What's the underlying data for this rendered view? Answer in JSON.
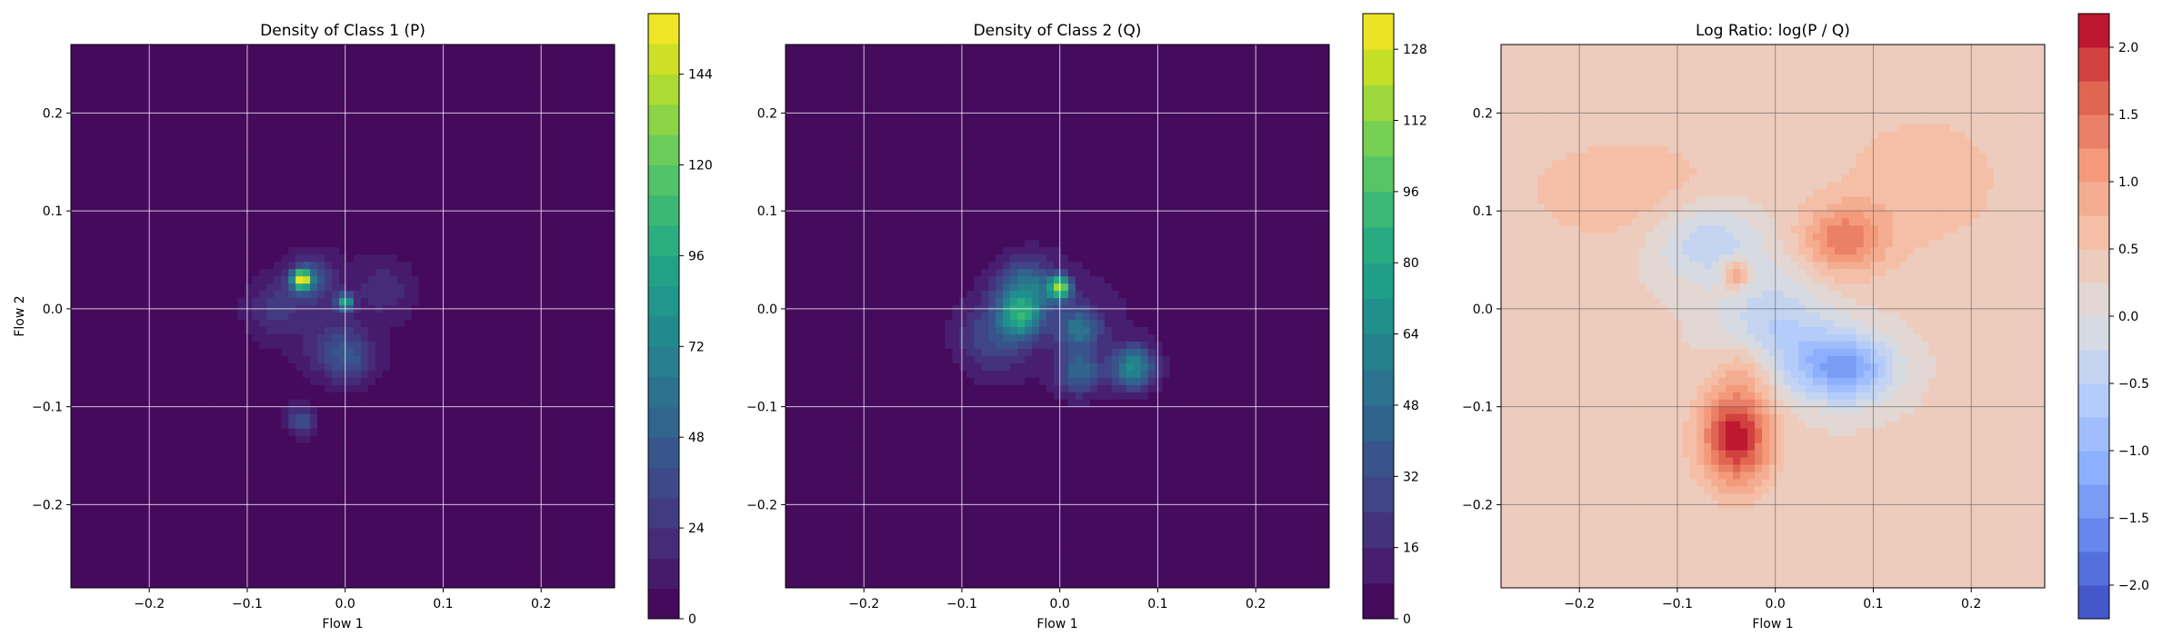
{
  "chart_data": [
    {
      "type": "heatmap",
      "subtype": "filled-contour",
      "title": "Density of Class 1 (P)",
      "xlabel": "Flow 1",
      "ylabel": "Flow 2",
      "xlim": [
        -0.28,
        0.275
      ],
      "ylim": [
        -0.285,
        0.27
      ],
      "xticks": [
        -0.2,
        -0.1,
        0.0,
        0.1,
        0.2
      ],
      "xtick_labels": [
        "−0.2",
        "−0.1",
        "0.0",
        "0.1",
        "0.2"
      ],
      "yticks": [
        -0.2,
        -0.1,
        0.0,
        0.1,
        0.2
      ],
      "ytick_labels": [
        "−0.2",
        "−0.1",
        "0.0",
        "0.1",
        "0.2"
      ],
      "grid": true,
      "colormap": "viridis",
      "colorbar": {
        "range": [
          0,
          160
        ],
        "levels": 20,
        "ticks": [
          0,
          24,
          48,
          72,
          96,
          120,
          144
        ],
        "tick_labels": [
          "0",
          "24",
          "48",
          "72",
          "96",
          "120",
          "144"
        ]
      },
      "background": "#440154",
      "blobs": [
        {
          "x": -0.01,
          "y": 0.0,
          "sx": 0.085,
          "sy": 0.085,
          "value": 8
        },
        {
          "x": -0.045,
          "y": 0.03,
          "sx": 0.006,
          "sy": 0.006,
          "value": 150
        },
        {
          "x": -0.035,
          "y": 0.03,
          "sx": 0.015,
          "sy": 0.015,
          "value": 45
        },
        {
          "x": 0.0,
          "y": 0.007,
          "sx": 0.006,
          "sy": 0.006,
          "value": 85
        },
        {
          "x": -0.01,
          "y": -0.04,
          "sx": 0.02,
          "sy": 0.02,
          "value": 28
        },
        {
          "x": 0.01,
          "y": -0.055,
          "sx": 0.015,
          "sy": 0.015,
          "value": 22
        },
        {
          "x": -0.045,
          "y": -0.115,
          "sx": 0.01,
          "sy": 0.01,
          "value": 38
        },
        {
          "x": -0.07,
          "y": 0.0,
          "sx": 0.02,
          "sy": 0.02,
          "value": 22
        },
        {
          "x": 0.04,
          "y": 0.02,
          "sx": 0.02,
          "sy": 0.02,
          "value": 15
        }
      ]
    },
    {
      "type": "heatmap",
      "subtype": "filled-contour",
      "title": "Density of Class 2 (Q)",
      "xlabel": "Flow 1",
      "ylabel": "",
      "xlim": [
        -0.28,
        0.275
      ],
      "ylim": [
        -0.285,
        0.27
      ],
      "xticks": [
        -0.2,
        -0.1,
        0.0,
        0.1,
        0.2
      ],
      "xtick_labels": [
        "−0.2",
        "−0.1",
        "0.0",
        "0.1",
        "0.2"
      ],
      "yticks": [
        -0.2,
        -0.1,
        0.0,
        0.1,
        0.2
      ],
      "ytick_labels": [
        "−0.2",
        "−0.1",
        "0.0",
        "0.1",
        "0.2"
      ],
      "grid": true,
      "colormap": "viridis",
      "colorbar": {
        "range": [
          0,
          136
        ],
        "levels": 17,
        "ticks": [
          0,
          16,
          32,
          48,
          64,
          80,
          96,
          112,
          128
        ],
        "tick_labels": [
          "0",
          "16",
          "32",
          "48",
          "64",
          "80",
          "96",
          "112",
          "128"
        ]
      },
      "background": "#440154",
      "blobs": [
        {
          "x": 0.01,
          "y": -0.01,
          "sx": 0.085,
          "sy": 0.07,
          "value": 10
        },
        {
          "x": 0.0,
          "y": 0.022,
          "sx": 0.008,
          "sy": 0.008,
          "value": 100
        },
        {
          "x": -0.035,
          "y": 0.02,
          "sx": 0.02,
          "sy": 0.02,
          "value": 50
        },
        {
          "x": -0.04,
          "y": -0.01,
          "sx": 0.015,
          "sy": 0.015,
          "value": 55
        },
        {
          "x": 0.02,
          "y": -0.02,
          "sx": 0.015,
          "sy": 0.015,
          "value": 45
        },
        {
          "x": 0.075,
          "y": -0.06,
          "sx": 0.015,
          "sy": 0.015,
          "value": 60
        },
        {
          "x": 0.02,
          "y": -0.065,
          "sx": 0.015,
          "sy": 0.015,
          "value": 40
        },
        {
          "x": -0.07,
          "y": -0.03,
          "sx": 0.025,
          "sy": 0.025,
          "value": 25
        }
      ]
    },
    {
      "type": "heatmap",
      "subtype": "filled-contour",
      "title": "Log Ratio: log(P / Q)",
      "xlabel": "Flow 1",
      "ylabel": "",
      "xlim": [
        -0.28,
        0.275
      ],
      "ylim": [
        -0.285,
        0.27
      ],
      "xticks": [
        -0.2,
        -0.1,
        0.0,
        0.1,
        0.2
      ],
      "xtick_labels": [
        "−0.2",
        "−0.1",
        "0.0",
        "0.1",
        "0.2"
      ],
      "yticks": [
        -0.2,
        -0.1,
        0.0,
        0.1,
        0.2
      ],
      "ytick_labels": [
        "−0.2",
        "−0.1",
        "0.0",
        "0.1",
        "0.2"
      ],
      "grid": true,
      "colormap": "coolwarm",
      "colorbar": {
        "range": [
          -2.25,
          2.25
        ],
        "levels": 18,
        "ticks": [
          -2.0,
          -1.5,
          -1.0,
          -0.5,
          0.0,
          0.5,
          1.0,
          1.5,
          2.0
        ],
        "tick_labels": [
          "−2.0",
          "−1.5",
          "−1.0",
          "−0.5",
          "0.0",
          "0.5",
          "1.0",
          "1.5",
          "2.0"
        ]
      },
      "baseline_value": 0.3,
      "blobs": [
        {
          "x": -0.04,
          "y": -0.13,
          "sx": 0.025,
          "sy": 0.035,
          "value": 1.9
        },
        {
          "x": 0.07,
          "y": 0.07,
          "sx": 0.03,
          "sy": 0.025,
          "value": 1.1
        },
        {
          "x": -0.04,
          "y": 0.035,
          "sx": 0.01,
          "sy": 0.01,
          "value": 1.2
        },
        {
          "x": 0.07,
          "y": -0.06,
          "sx": 0.035,
          "sy": 0.025,
          "value": -1.6
        },
        {
          "x": -0.07,
          "y": 0.07,
          "sx": 0.04,
          "sy": 0.03,
          "value": -0.8
        },
        {
          "x": 0.0,
          "y": -0.02,
          "sx": 0.04,
          "sy": 0.04,
          "value": -0.8
        },
        {
          "x": -0.03,
          "y": -0.06,
          "sx": 0.02,
          "sy": 0.02,
          "value": 0.5
        },
        {
          "x": -0.15,
          "y": 0.12,
          "sx": 0.08,
          "sy": 0.04,
          "value": 0.4
        },
        {
          "x": 0.15,
          "y": 0.13,
          "sx": 0.06,
          "sy": 0.05,
          "value": 0.4
        }
      ]
    }
  ]
}
